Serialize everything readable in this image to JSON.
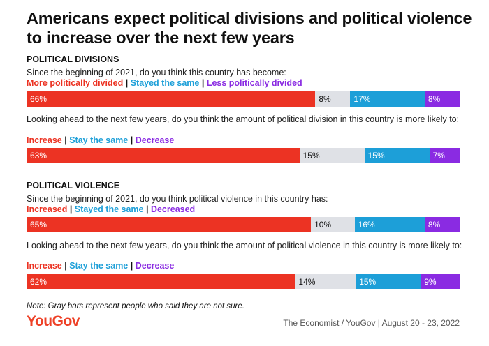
{
  "colors": {
    "red": "#ec3323",
    "gray": "#dfe1e6",
    "cyan": "#1d9fd8",
    "purple": "#8a2be2",
    "brand": "#ee4127"
  },
  "title": "Americans expect political divisions and political violence to increase over the next few years",
  "chart_data": {
    "type": "bar",
    "orientation": "horizontal-stacked",
    "title": "Americans expect political divisions and political violence to increase over the next few years",
    "sections": [
      {
        "heading": "POLITICAL DIVISIONS",
        "questions": [
          {
            "question": "Since the beginning of 2021, do you think this country has become:",
            "legend": [
              {
                "label": "More politically divided",
                "color": "#ec3323"
              },
              {
                "label": "Stayed the same",
                "color": "#1d9fd8"
              },
              {
                "label": "Less politically divided",
                "color": "#8a2be2"
              }
            ],
            "segments": [
              {
                "category": "More politically divided",
                "value": 66,
                "label": "66%",
                "color": "red"
              },
              {
                "category": "Not sure",
                "value": 8,
                "label": "8%",
                "color": "gray"
              },
              {
                "category": "Stayed the same",
                "value": 17,
                "label": "17%",
                "color": "cyan"
              },
              {
                "category": "Less politically divided",
                "value": 8,
                "label": "8%",
                "color": "purple"
              }
            ]
          },
          {
            "question": "Looking ahead to the next few years, do you think the amount of political division in this country is more likely to:",
            "legend": [
              {
                "label": "Increase",
                "color": "#ec3323"
              },
              {
                "label": "Stay the same",
                "color": "#1d9fd8"
              },
              {
                "label": "Decrease",
                "color": "#8a2be2"
              }
            ],
            "segments": [
              {
                "category": "Increase",
                "value": 63,
                "label": "63%",
                "color": "red"
              },
              {
                "category": "Not sure",
                "value": 15,
                "label": "15%",
                "color": "gray"
              },
              {
                "category": "Stay the same",
                "value": 15,
                "label": "15%",
                "color": "cyan"
              },
              {
                "category": "Decrease",
                "value": 7,
                "label": "7%",
                "color": "purple"
              }
            ]
          }
        ]
      },
      {
        "heading": "POLITICAL VIOLENCE",
        "questions": [
          {
            "question": "Since the beginning of 2021, do you think political violence in this country has:",
            "legend": [
              {
                "label": "Increased",
                "color": "#ec3323"
              },
              {
                "label": "Stayed the same",
                "color": "#1d9fd8"
              },
              {
                "label": "Decreased",
                "color": "#8a2be2"
              }
            ],
            "segments": [
              {
                "category": "Increased",
                "value": 65,
                "label": "65%",
                "color": "red"
              },
              {
                "category": "Not sure",
                "value": 10,
                "label": "10%",
                "color": "gray"
              },
              {
                "category": "Stayed the same",
                "value": 16,
                "label": "16%",
                "color": "cyan"
              },
              {
                "category": "Decreased",
                "value": 8,
                "label": "8%",
                "color": "purple"
              }
            ]
          },
          {
            "question": "Looking ahead to the next few years, do you think the amount of political violence in this country is more likely to:",
            "legend": [
              {
                "label": "Increase",
                "color": "#ec3323"
              },
              {
                "label": "Stay the same",
                "color": "#1d9fd8"
              },
              {
                "label": "Decrease",
                "color": "#8a2be2"
              }
            ],
            "segments": [
              {
                "category": "Increase",
                "value": 62,
                "label": "62%",
                "color": "red"
              },
              {
                "category": "Not sure",
                "value": 14,
                "label": "14%",
                "color": "gray"
              },
              {
                "category": "Stay the same",
                "value": 15,
                "label": "15%",
                "color": "cyan"
              },
              {
                "category": "Decrease",
                "value": 9,
                "label": "9%",
                "color": "purple"
              }
            ]
          }
        ]
      }
    ]
  },
  "note": "Note: Gray bars represent people who said they are not sure.",
  "brand": "YouGov",
  "source": "The Economist / YouGov | August 20 - 23, 2022"
}
